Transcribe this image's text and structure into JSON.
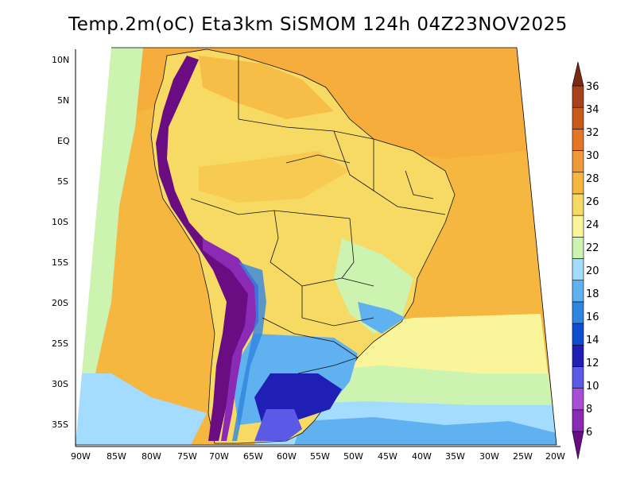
{
  "title": "Temp.2m(oC) Eta3km SiSMOM 124h 04Z23NOV2025",
  "lat_labels": [
    "10N",
    "5N",
    "EQ",
    "5S",
    "10S",
    "15S",
    "20S",
    "25S",
    "30S",
    "35S"
  ],
  "lon_labels": [
    "90W",
    "85W",
    "80W",
    "75W",
    "70W",
    "65W",
    "60W",
    "55W",
    "50W",
    "45W",
    "40W",
    "35W",
    "30W",
    "25W",
    "20W"
  ],
  "colorbar": {
    "labels": [
      "6",
      "8",
      "10",
      "12",
      "14",
      "16",
      "18",
      "20",
      "22",
      "24",
      "26",
      "28",
      "30",
      "32",
      "34",
      "36"
    ],
    "colors": [
      "#6a0d83",
      "#8b2bb5",
      "#a84fd6",
      "#5a5ae6",
      "#1f1fb5",
      "#0f4fcf",
      "#2f86e0",
      "#5fb1f0",
      "#a3dcff",
      "#cdf3b0",
      "#f8f59a",
      "#f7da63",
      "#f6b740",
      "#ee9a3a",
      "#e27626",
      "#c85a1a",
      "#a8421a",
      "#7a2b13"
    ]
  },
  "palette": {
    "ocean": "#f6b740",
    "land_warm": "#f7da63",
    "land_cool": "#cdf3b0",
    "cold": "#6a0d83"
  }
}
